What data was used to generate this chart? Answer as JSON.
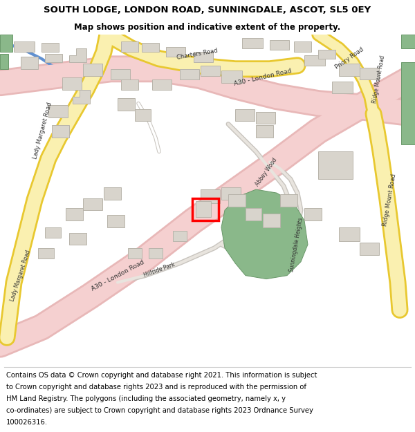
{
  "title": "SOUTH LODGE, LONDON ROAD, SUNNINGDALE, ASCOT, SL5 0EY",
  "subtitle": "Map shows position and indicative extent of the property.",
  "footer_lines": [
    "Contains OS data © Crown copyright and database right 2021. This information is subject",
    "to Crown copyright and database rights 2023 and is reproduced with the permission of",
    "HM Land Registry. The polygons (including the associated geometry, namely x, y",
    "co-ordinates) are subject to Crown copyright and database rights 2023 Ordnance Survey",
    "100026316."
  ],
  "title_fontsize": 9.5,
  "subtitle_fontsize": 8.5,
  "footer_fontsize": 7.2,
  "bg_color": "#ffffff",
  "map_bg": "#f0ece4",
  "road_pink_fill": "#f5d0d0",
  "road_pink_edge": "#e8b8b8",
  "road_yellow_fill": "#faf0b0",
  "road_yellow_edge": "#e8c830",
  "road_gray_fill": "#e8e4de",
  "road_gray_edge": "#c8c4be",
  "road_white_fill": "#ffffff",
  "building_fill": "#d8d4cc",
  "building_edge": "#b8b4aa",
  "green_fill": "#8ab88a",
  "green_edge": "#6a986a",
  "blue_line": "#6090d0",
  "highlight_color": "#ff0000",
  "text_color": "#333333"
}
